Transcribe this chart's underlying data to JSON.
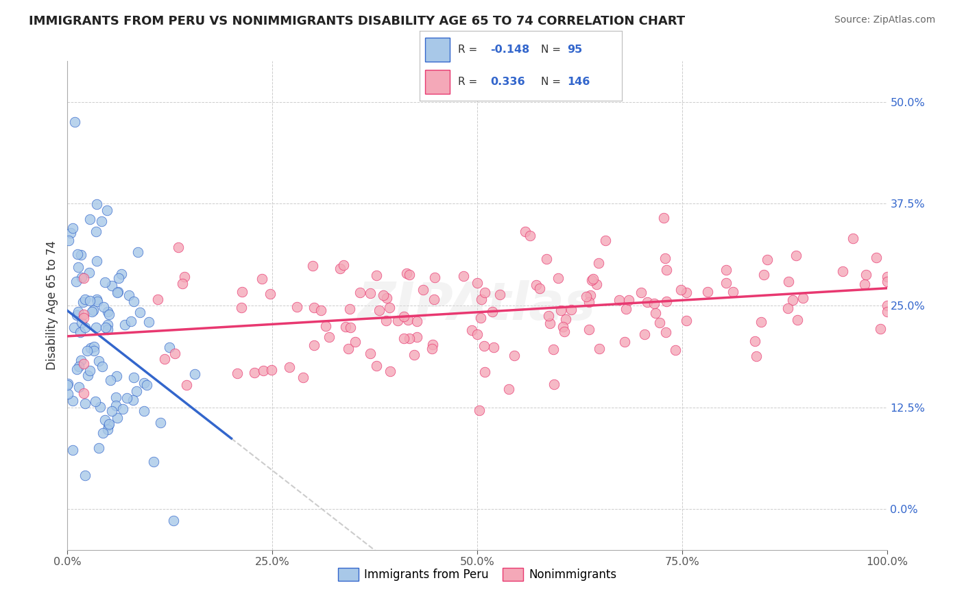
{
  "title": "IMMIGRANTS FROM PERU VS NONIMMIGRANTS DISABILITY AGE 65 TO 74 CORRELATION CHART",
  "source": "Source: ZipAtlas.com",
  "ylabel": "Disability Age 65 to 74",
  "xlim": [
    0,
    100
  ],
  "ylim": [
    -5,
    55
  ],
  "yticks": [
    0,
    12.5,
    25.0,
    37.5,
    50.0
  ],
  "xticks": [
    0,
    25,
    50,
    75,
    100
  ],
  "xtick_labels": [
    "0.0%",
    "25.0%",
    "50.0%",
    "75.0%",
    "100.0%"
  ],
  "ytick_labels": [
    "0.0%",
    "12.5%",
    "25.0%",
    "37.5%",
    "50.0%"
  ],
  "legend_R1": "-0.148",
  "legend_N1": "95",
  "legend_R2": "0.336",
  "legend_N2": "146",
  "blue_color": "#a8c8e8",
  "pink_color": "#f4a8b8",
  "blue_line_color": "#3366cc",
  "pink_line_color": "#e83870",
  "axis_color": "#aaaaaa",
  "title_color": "#222222",
  "source_color": "#666666",
  "background_color": "#ffffff",
  "grid_color": "#cccccc",
  "watermark_color": "#dddddd",
  "seed": 12,
  "blue_R": -0.148,
  "blue_N": 95,
  "pink_R": 0.336,
  "pink_N": 146,
  "blue_x_mean": 4.0,
  "blue_x_std": 4.0,
  "blue_y_mean": 22.0,
  "blue_y_std": 8.0,
  "pink_x_mean": 55.0,
  "pink_x_std": 26.0,
  "pink_y_mean": 24.5,
  "pink_y_std": 5.0,
  "blue_line_xmax": 20,
  "dashed_line_xmax": 58
}
